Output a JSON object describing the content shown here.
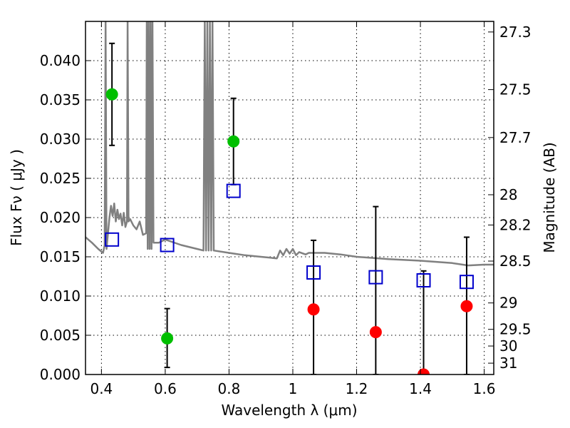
{
  "chart_data": {
    "type": "scatter",
    "xlabel": "Wavelength  λ (μm)",
    "ylabel": "Flux  Fν  ( μJy )",
    "y2label": "Magnitude (AB)",
    "xlim": [
      0.35,
      1.63
    ],
    "ylim": [
      0.0,
      0.045
    ],
    "grid": true,
    "x_ticks": [
      0.4,
      0.6,
      0.8,
      1.0,
      1.2,
      1.4,
      1.6
    ],
    "x_tick_labels": [
      "0.4",
      "0.6",
      "0.8",
      "1",
      "1.2",
      "1.4",
      "1.6"
    ],
    "y_ticks": [
      0.0,
      0.005,
      0.01,
      0.015,
      0.02,
      0.025,
      0.03,
      0.035,
      0.04
    ],
    "y_tick_labels": [
      "0.000",
      "0.005",
      "0.010",
      "0.015",
      "0.020",
      "0.025",
      "0.030",
      "0.035",
      "0.040"
    ],
    "y2_tick_labels": [
      "27.3",
      "27.5",
      "27.7",
      "28",
      "28.2",
      "28.5",
      "29",
      "29.5",
      "30",
      "31"
    ],
    "colors": {
      "green": "#00bf00",
      "red": "#ff0000",
      "blue": "#0000cc",
      "model": "#808080",
      "errorbar": "#000000"
    },
    "series": [
      {
        "marker": "circle",
        "color": "#00bf00",
        "points": [
          {
            "x": 0.433,
            "y": 0.0357,
            "err_lo": 0.0065,
            "err_hi": 0.0065
          },
          {
            "x": 0.606,
            "y": 0.0046,
            "err_lo": 0.0037,
            "err_hi": 0.0038
          },
          {
            "x": 0.814,
            "y": 0.0297,
            "err_lo": 0.0055,
            "err_hi": 0.0055
          }
        ]
      },
      {
        "marker": "circle",
        "color": "#ff0000",
        "points": [
          {
            "x": 1.065,
            "y": 0.0083,
            "err_lo": 0.0083,
            "err_hi": 0.0088
          },
          {
            "x": 1.26,
            "y": 0.0054,
            "err_lo": 0.0054,
            "err_hi": 0.016
          },
          {
            "x": 1.41,
            "y": 0.0,
            "err_lo": 0.0,
            "err_hi": 0.0132
          },
          {
            "x": 1.545,
            "y": 0.0087,
            "err_lo": 0.0087,
            "err_hi": 0.0088
          }
        ]
      },
      {
        "marker": "open-square",
        "color": "#0000cc",
        "points": [
          {
            "x": 0.433,
            "y": 0.0172
          },
          {
            "x": 0.606,
            "y": 0.0165
          },
          {
            "x": 0.814,
            "y": 0.0234
          },
          {
            "x": 1.065,
            "y": 0.013
          },
          {
            "x": 1.26,
            "y": 0.0124
          },
          {
            "x": 1.41,
            "y": 0.012
          },
          {
            "x": 1.545,
            "y": 0.0118
          }
        ]
      },
      {
        "marker": "line",
        "color": "#808080",
        "points": [
          [
            0.35,
            0.0175
          ],
          [
            0.37,
            0.0168
          ],
          [
            0.39,
            0.016
          ],
          [
            0.405,
            0.0155
          ],
          [
            0.41,
            0.0165
          ],
          [
            0.413,
            0.045
          ],
          [
            0.416,
            0.016
          ],
          [
            0.425,
            0.02
          ],
          [
            0.43,
            0.0215
          ],
          [
            0.435,
            0.0202
          ],
          [
            0.44,
            0.0218
          ],
          [
            0.445,
            0.0195
          ],
          [
            0.45,
            0.021
          ],
          [
            0.455,
            0.0198
          ],
          [
            0.46,
            0.0205
          ],
          [
            0.465,
            0.019
          ],
          [
            0.47,
            0.0206
          ],
          [
            0.475,
            0.0188
          ],
          [
            0.48,
            0.0195
          ],
          [
            0.482,
            0.045
          ],
          [
            0.485,
            0.0195
          ],
          [
            0.49,
            0.0198
          ],
          [
            0.5,
            0.019
          ],
          [
            0.51,
            0.0185
          ],
          [
            0.52,
            0.0195
          ],
          [
            0.53,
            0.0178
          ],
          [
            0.54,
            0.018
          ],
          [
            0.542,
            0.045
          ],
          [
            0.545,
            0.016
          ],
          [
            0.548,
            0.045
          ],
          [
            0.551,
            0.016
          ],
          [
            0.554,
            0.045
          ],
          [
            0.557,
            0.016
          ],
          [
            0.56,
            0.045
          ],
          [
            0.563,
            0.0168
          ],
          [
            0.58,
            0.0168
          ],
          [
            0.6,
            0.0172
          ],
          [
            0.65,
            0.0165
          ],
          [
            0.7,
            0.016
          ],
          [
            0.72,
            0.0158
          ],
          [
            0.724,
            0.045
          ],
          [
            0.728,
            0.0158
          ],
          [
            0.732,
            0.045
          ],
          [
            0.736,
            0.0158
          ],
          [
            0.74,
            0.045
          ],
          [
            0.744,
            0.0158
          ],
          [
            0.748,
            0.045
          ],
          [
            0.752,
            0.0158
          ],
          [
            0.8,
            0.0155
          ],
          [
            0.85,
            0.0152
          ],
          [
            0.9,
            0.015
          ],
          [
            0.95,
            0.0148
          ],
          [
            0.96,
            0.0158
          ],
          [
            0.97,
            0.0152
          ],
          [
            0.98,
            0.016
          ],
          [
            0.99,
            0.0154
          ],
          [
            1.0,
            0.016
          ],
          [
            1.01,
            0.0152
          ],
          [
            1.02,
            0.0156
          ],
          [
            1.04,
            0.0153
          ],
          [
            1.05,
            0.0155
          ],
          [
            1.1,
            0.0155
          ],
          [
            1.15,
            0.0153
          ],
          [
            1.2,
            0.015
          ],
          [
            1.3,
            0.0147
          ],
          [
            1.4,
            0.0145
          ],
          [
            1.5,
            0.0142
          ],
          [
            1.55,
            0.0139
          ],
          [
            1.6,
            0.014
          ],
          [
            1.63,
            0.014
          ]
        ]
      }
    ]
  }
}
